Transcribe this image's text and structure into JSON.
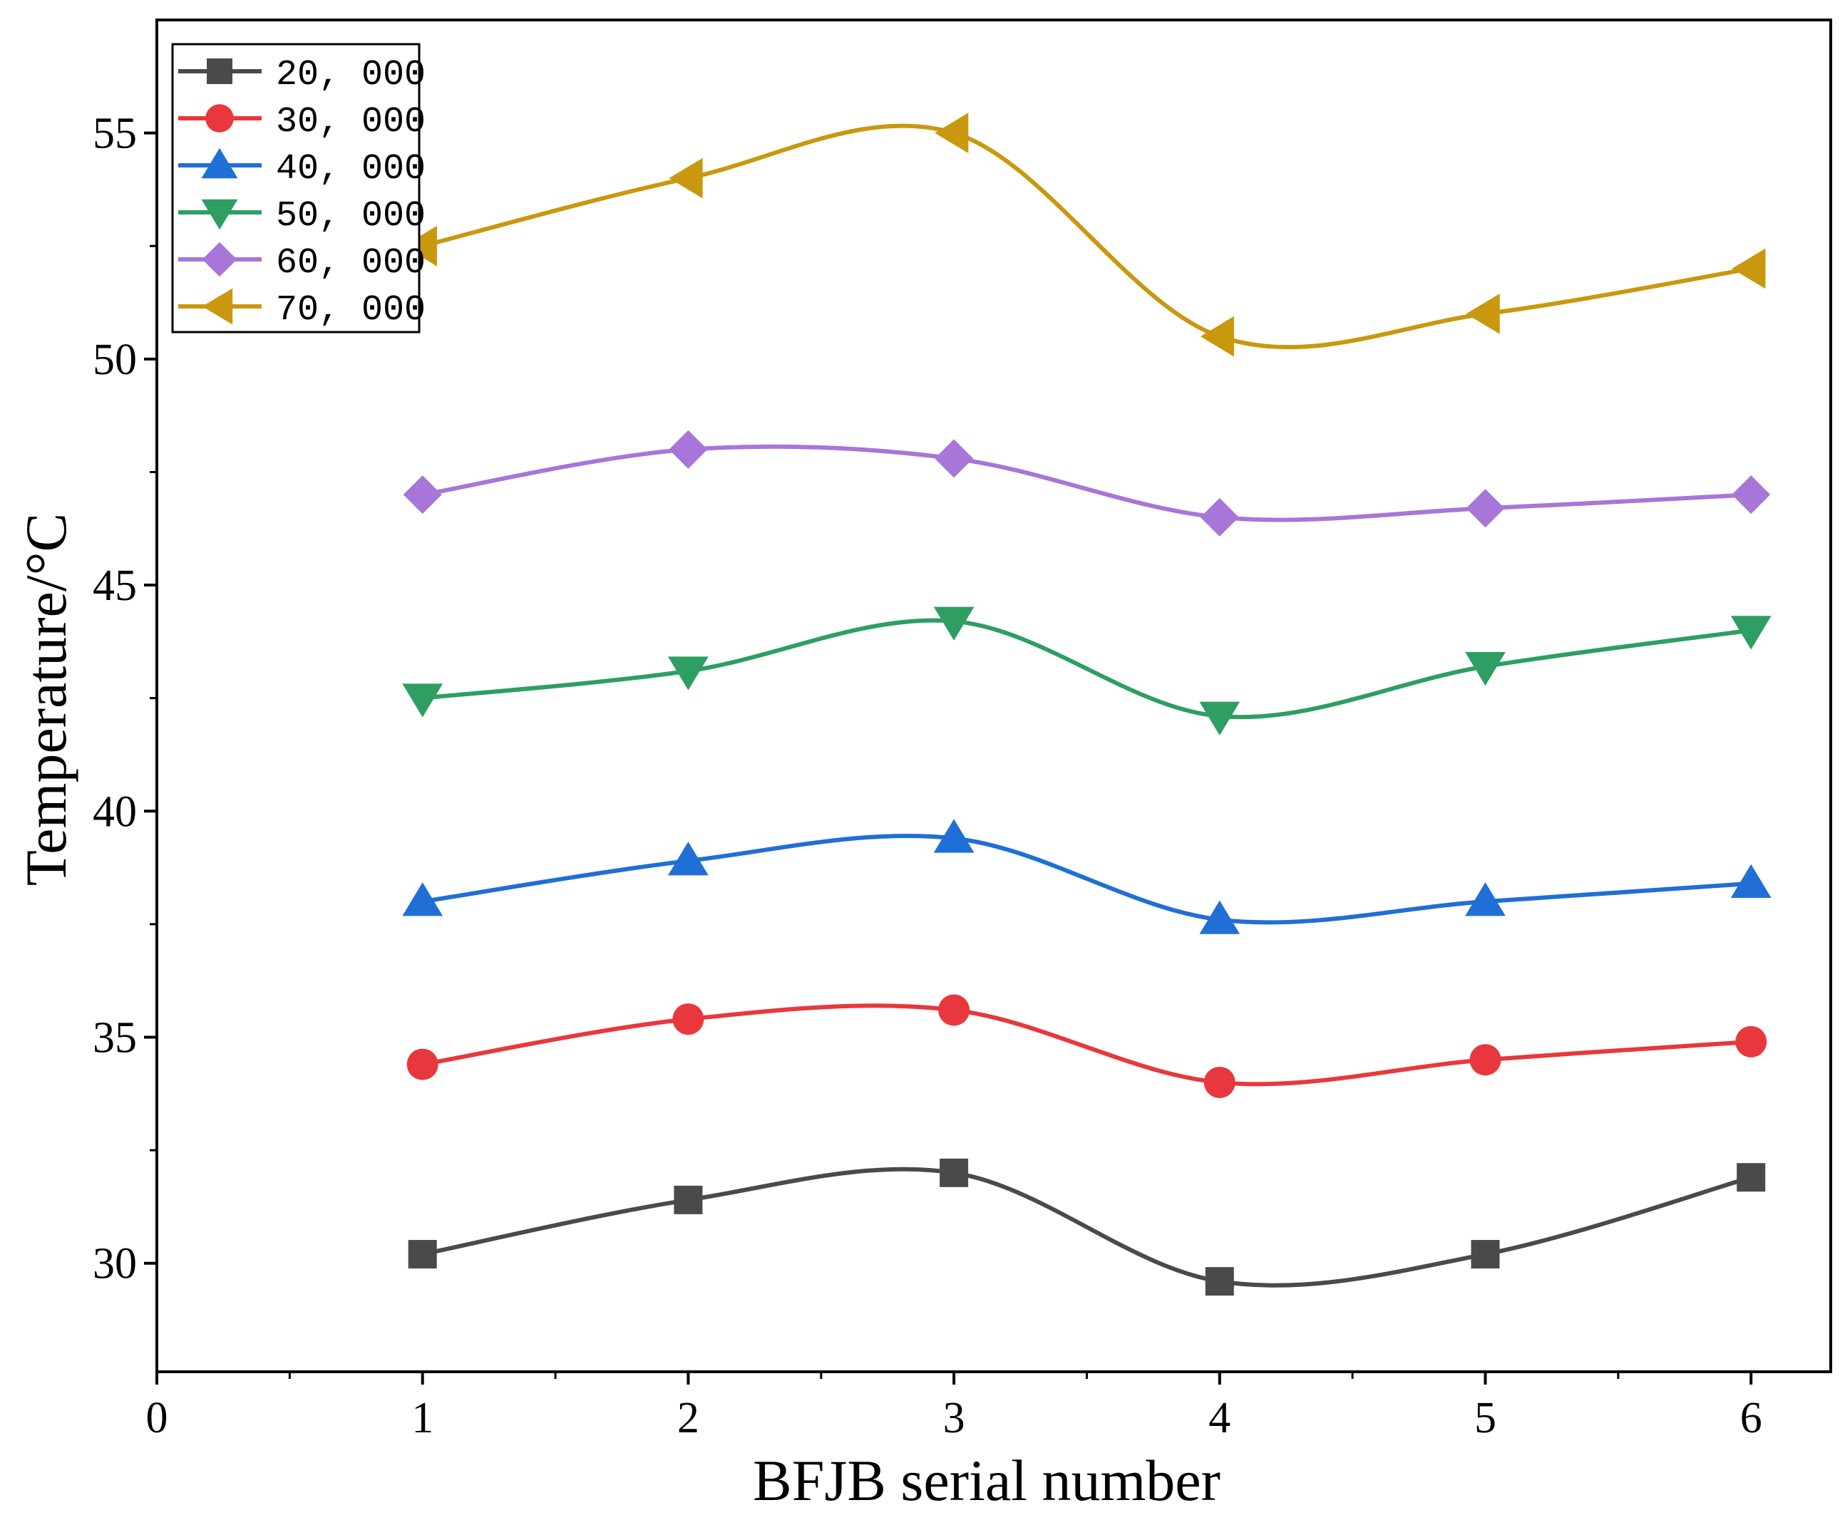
{
  "chart_data": {
    "type": "line",
    "title": "",
    "xlabel": "BFJB serial number",
    "ylabel": "Temperature/°C",
    "xlim": [
      0,
      6.3
    ],
    "ylim": [
      27.6,
      57.5
    ],
    "xticks": [
      0,
      1,
      2,
      3,
      4,
      5,
      6
    ],
    "yticks": [
      30,
      35,
      40,
      45,
      50,
      55
    ],
    "grid": false,
    "legend_position": "top-left",
    "x": [
      1,
      2,
      3,
      4,
      5,
      6
    ],
    "series": [
      {
        "name": "20, 000",
        "marker": "square",
        "color": "#4a4a4a",
        "values": [
          30.2,
          31.4,
          32.0,
          29.6,
          30.2,
          31.9
        ]
      },
      {
        "name": "30, 000",
        "marker": "circle",
        "color": "#e8383d",
        "values": [
          34.4,
          35.4,
          35.6,
          34.0,
          34.5,
          34.9
        ]
      },
      {
        "name": "40, 000",
        "marker": "triangle-up",
        "color": "#1f6fd6",
        "values": [
          38.0,
          38.9,
          39.4,
          37.6,
          38.0,
          38.4
        ]
      },
      {
        "name": "50, 000",
        "marker": "triangle-down",
        "color": "#2e9e63",
        "values": [
          42.5,
          43.1,
          44.2,
          42.1,
          43.2,
          44.0
        ]
      },
      {
        "name": "60, 000",
        "marker": "diamond",
        "color": "#a875d8",
        "values": [
          47.0,
          48.0,
          47.8,
          46.5,
          46.7,
          47.0
        ]
      },
      {
        "name": "70, 000",
        "marker": "triangle-left",
        "color": "#c9980e",
        "values": [
          52.5,
          54.0,
          55.0,
          50.5,
          51.0,
          52.0
        ]
      }
    ]
  }
}
